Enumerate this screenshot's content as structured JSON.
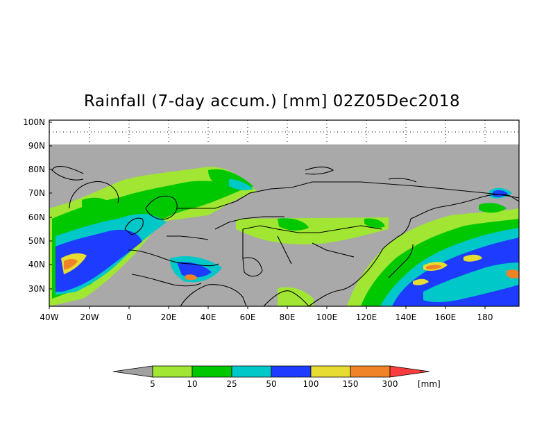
{
  "title": "Rainfall (7-day accum.) [mm] 02Z05Dec2018",
  "map": {
    "lon_range": [
      -40,
      195
    ],
    "lat_range": [
      22,
      100
    ],
    "no_data_above_lat": 90,
    "y_ticks": [
      "100N",
      "90N",
      "80N",
      "70N",
      "60N",
      "50N",
      "40N",
      "30N"
    ],
    "x_ticks": [
      "40W",
      "20W",
      "0",
      "20E",
      "40E",
      "60E",
      "80E",
      "100E",
      "120E",
      "140E",
      "160E",
      "180"
    ]
  },
  "legend": {
    "unit": "[mm]",
    "thresholds": [
      "5",
      "10",
      "25",
      "50",
      "100",
      "150",
      "300"
    ],
    "colors": {
      "below": "#a0a0a0",
      "c1": "#a0e632",
      "c2": "#00c800",
      "c3": "#00c8c8",
      "c4": "#1e3cff",
      "c5": "#e6dc32",
      "c6": "#f08228",
      "above": "#fa3c3c"
    },
    "background_color": "#a9a9a9"
  }
}
